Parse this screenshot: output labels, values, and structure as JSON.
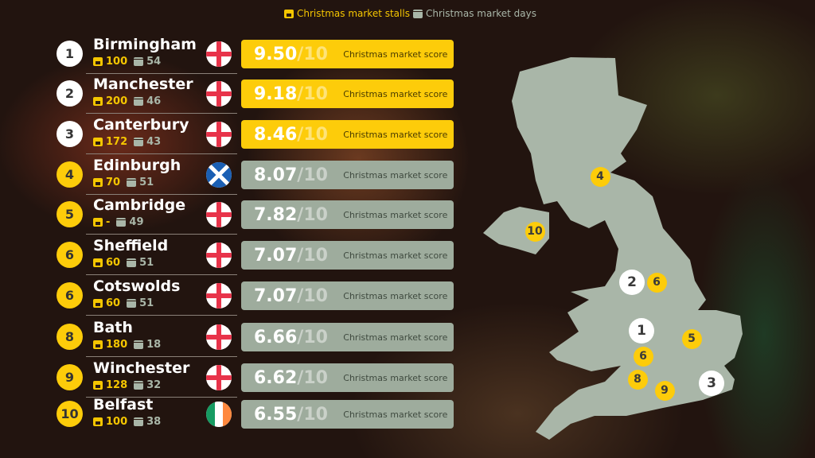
{
  "legend": {
    "stalls_label": "Christmas market stalls",
    "days_label": "Christmas market days",
    "stalls_icon": "market-stall-icon",
    "days_icon": "calendar-icon"
  },
  "colors": {
    "top": "#fdcc0a",
    "other": "#9eac9d",
    "map": "#a9b6a8"
  },
  "score_label": "Christmas market score",
  "rows": [
    {
      "rank": "1",
      "city": "Birmingham",
      "stalls": "100",
      "days": "54",
      "flag": "england",
      "score": "9.50",
      "out_of": "/10"
    },
    {
      "rank": "2",
      "city": "Manchester",
      "stalls": "200",
      "days": "46",
      "flag": "england",
      "score": "9.18",
      "out_of": "/10"
    },
    {
      "rank": "3",
      "city": "Canterbury",
      "stalls": "172",
      "days": "43",
      "flag": "england",
      "score": "8.46",
      "out_of": "/10"
    },
    {
      "rank": "4",
      "city": "Edinburgh",
      "stalls": "70",
      "days": "51",
      "flag": "scotland",
      "score": "8.07",
      "out_of": "/10"
    },
    {
      "rank": "5",
      "city": "Cambridge",
      "stalls": "-",
      "days": "49",
      "flag": "england",
      "score": "7.82",
      "out_of": "/10"
    },
    {
      "rank": "6",
      "city": "Sheffield",
      "stalls": "60",
      "days": "51",
      "flag": "england",
      "score": "7.07",
      "out_of": "/10"
    },
    {
      "rank": "6",
      "city": "Cotswolds",
      "stalls": "60",
      "days": "51",
      "flag": "england",
      "score": "7.07",
      "out_of": "/10"
    },
    {
      "rank": "8",
      "city": "Bath",
      "stalls": "180",
      "days": "18",
      "flag": "england",
      "score": "6.66",
      "out_of": "/10"
    },
    {
      "rank": "9",
      "city": "Winchester",
      "stalls": "128",
      "days": "32",
      "flag": "england",
      "score": "6.62",
      "out_of": "/10"
    },
    {
      "rank": "10",
      "city": "Belfast",
      "stalls": "100",
      "days": "38",
      "flag": "ireland",
      "score": "6.55",
      "out_of": "/10"
    }
  ],
  "map_markers": [
    {
      "label": "4",
      "city": "Edinburgh"
    },
    {
      "label": "10",
      "city": "Belfast"
    },
    {
      "label": "2",
      "city": "Manchester"
    },
    {
      "label": "6",
      "city": "Sheffield"
    },
    {
      "label": "1",
      "city": "Birmingham"
    },
    {
      "label": "5",
      "city": "Cambridge"
    },
    {
      "label": "6",
      "city": "Cotswolds"
    },
    {
      "label": "8",
      "city": "Bath"
    },
    {
      "label": "9",
      "city": "Winchester"
    },
    {
      "label": "3",
      "city": "Canterbury"
    }
  ]
}
